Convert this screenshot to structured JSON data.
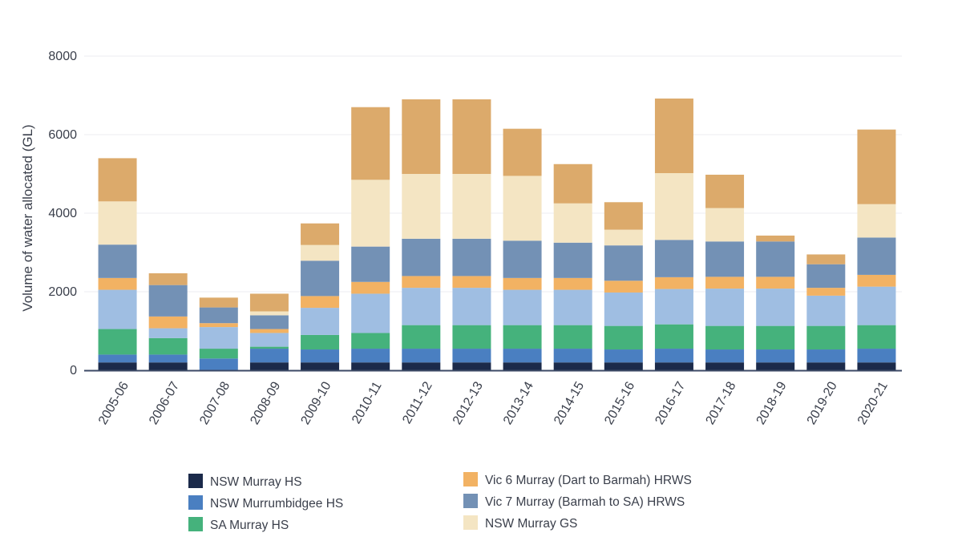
{
  "chart_data": {
    "type": "bar",
    "stacked": true,
    "ylabel": "Volume of water allocated (GL)",
    "xlabel": "",
    "ylim": [
      0,
      8000
    ],
    "yticks": [
      0,
      2000,
      4000,
      6000,
      8000
    ],
    "grid": "horizontal",
    "legend_position": "bottom",
    "categories": [
      "2005-06",
      "2006-07",
      "2007-08",
      "2008-09",
      "2009-10",
      "2010-11",
      "2011-12",
      "2012-13",
      "2013-14",
      "2014-15",
      "2015-16",
      "2016-17",
      "2017-18",
      "2018-19",
      "2019-20",
      "2020-21"
    ],
    "series": [
      {
        "name": "NSW Murray HS",
        "color": "#1b2a4a",
        "values": [
          200,
          200,
          0,
          200,
          200,
          200,
          200,
          200,
          200,
          200,
          200,
          200,
          200,
          200,
          200,
          200
        ]
      },
      {
        "name": "NSW Murrumbidgee HS",
        "color": "#4a7fc1",
        "values": [
          200,
          200,
          300,
          350,
          330,
          350,
          350,
          350,
          350,
          350,
          330,
          350,
          330,
          330,
          330,
          350
        ]
      },
      {
        "name": "SA Murray HS",
        "color": "#45b27c",
        "values": [
          650,
          420,
          250,
          50,
          370,
          400,
          600,
          600,
          600,
          600,
          600,
          620,
          600,
          600,
          600,
          600
        ]
      },
      {
        "name": "",
        "color": "#9fbee2",
        "values": [
          1000,
          250,
          550,
          350,
          690,
          1000,
          950,
          950,
          900,
          900,
          850,
          900,
          950,
          950,
          770,
          980
        ]
      },
      {
        "name": "Vic 6 Murray (Dart to Barmah) HRWS",
        "color": "#f2b263",
        "values": [
          300,
          300,
          100,
          100,
          300,
          300,
          300,
          300,
          300,
          300,
          300,
          300,
          300,
          300,
          200,
          300
        ]
      },
      {
        "name": "Vic 7 Murray (Barmah to SA) HRWS",
        "color": "#7391b5",
        "values": [
          850,
          800,
          400,
          350,
          900,
          900,
          950,
          950,
          950,
          900,
          900,
          950,
          900,
          900,
          600,
          950
        ]
      },
      {
        "name": "NSW Murray GS",
        "color": "#f4e5c3",
        "values": [
          1100,
          0,
          0,
          100,
          400,
          1700,
          1650,
          1650,
          1650,
          1000,
          400,
          1700,
          850,
          0,
          0,
          850
        ]
      },
      {
        "name": "",
        "color": "#dcaa6b",
        "values": [
          1100,
          300,
          250,
          450,
          550,
          1850,
          1900,
          1900,
          1200,
          1000,
          700,
          1900,
          850,
          150,
          250,
          1900
        ]
      }
    ],
    "legend": [
      {
        "series": 0,
        "label": "NSW Murray HS"
      },
      {
        "series": 1,
        "label": "NSW Murrumbidgee HS"
      },
      {
        "series": 2,
        "label": "SA Murray HS"
      },
      {
        "series": 4,
        "label": "Vic 6 Murray (Dart to Barmah) HRWS"
      },
      {
        "series": 5,
        "label": "Vic 7 Murray (Barmah to SA) HRWS"
      },
      {
        "series": 6,
        "label": "NSW Murray GS"
      }
    ]
  }
}
